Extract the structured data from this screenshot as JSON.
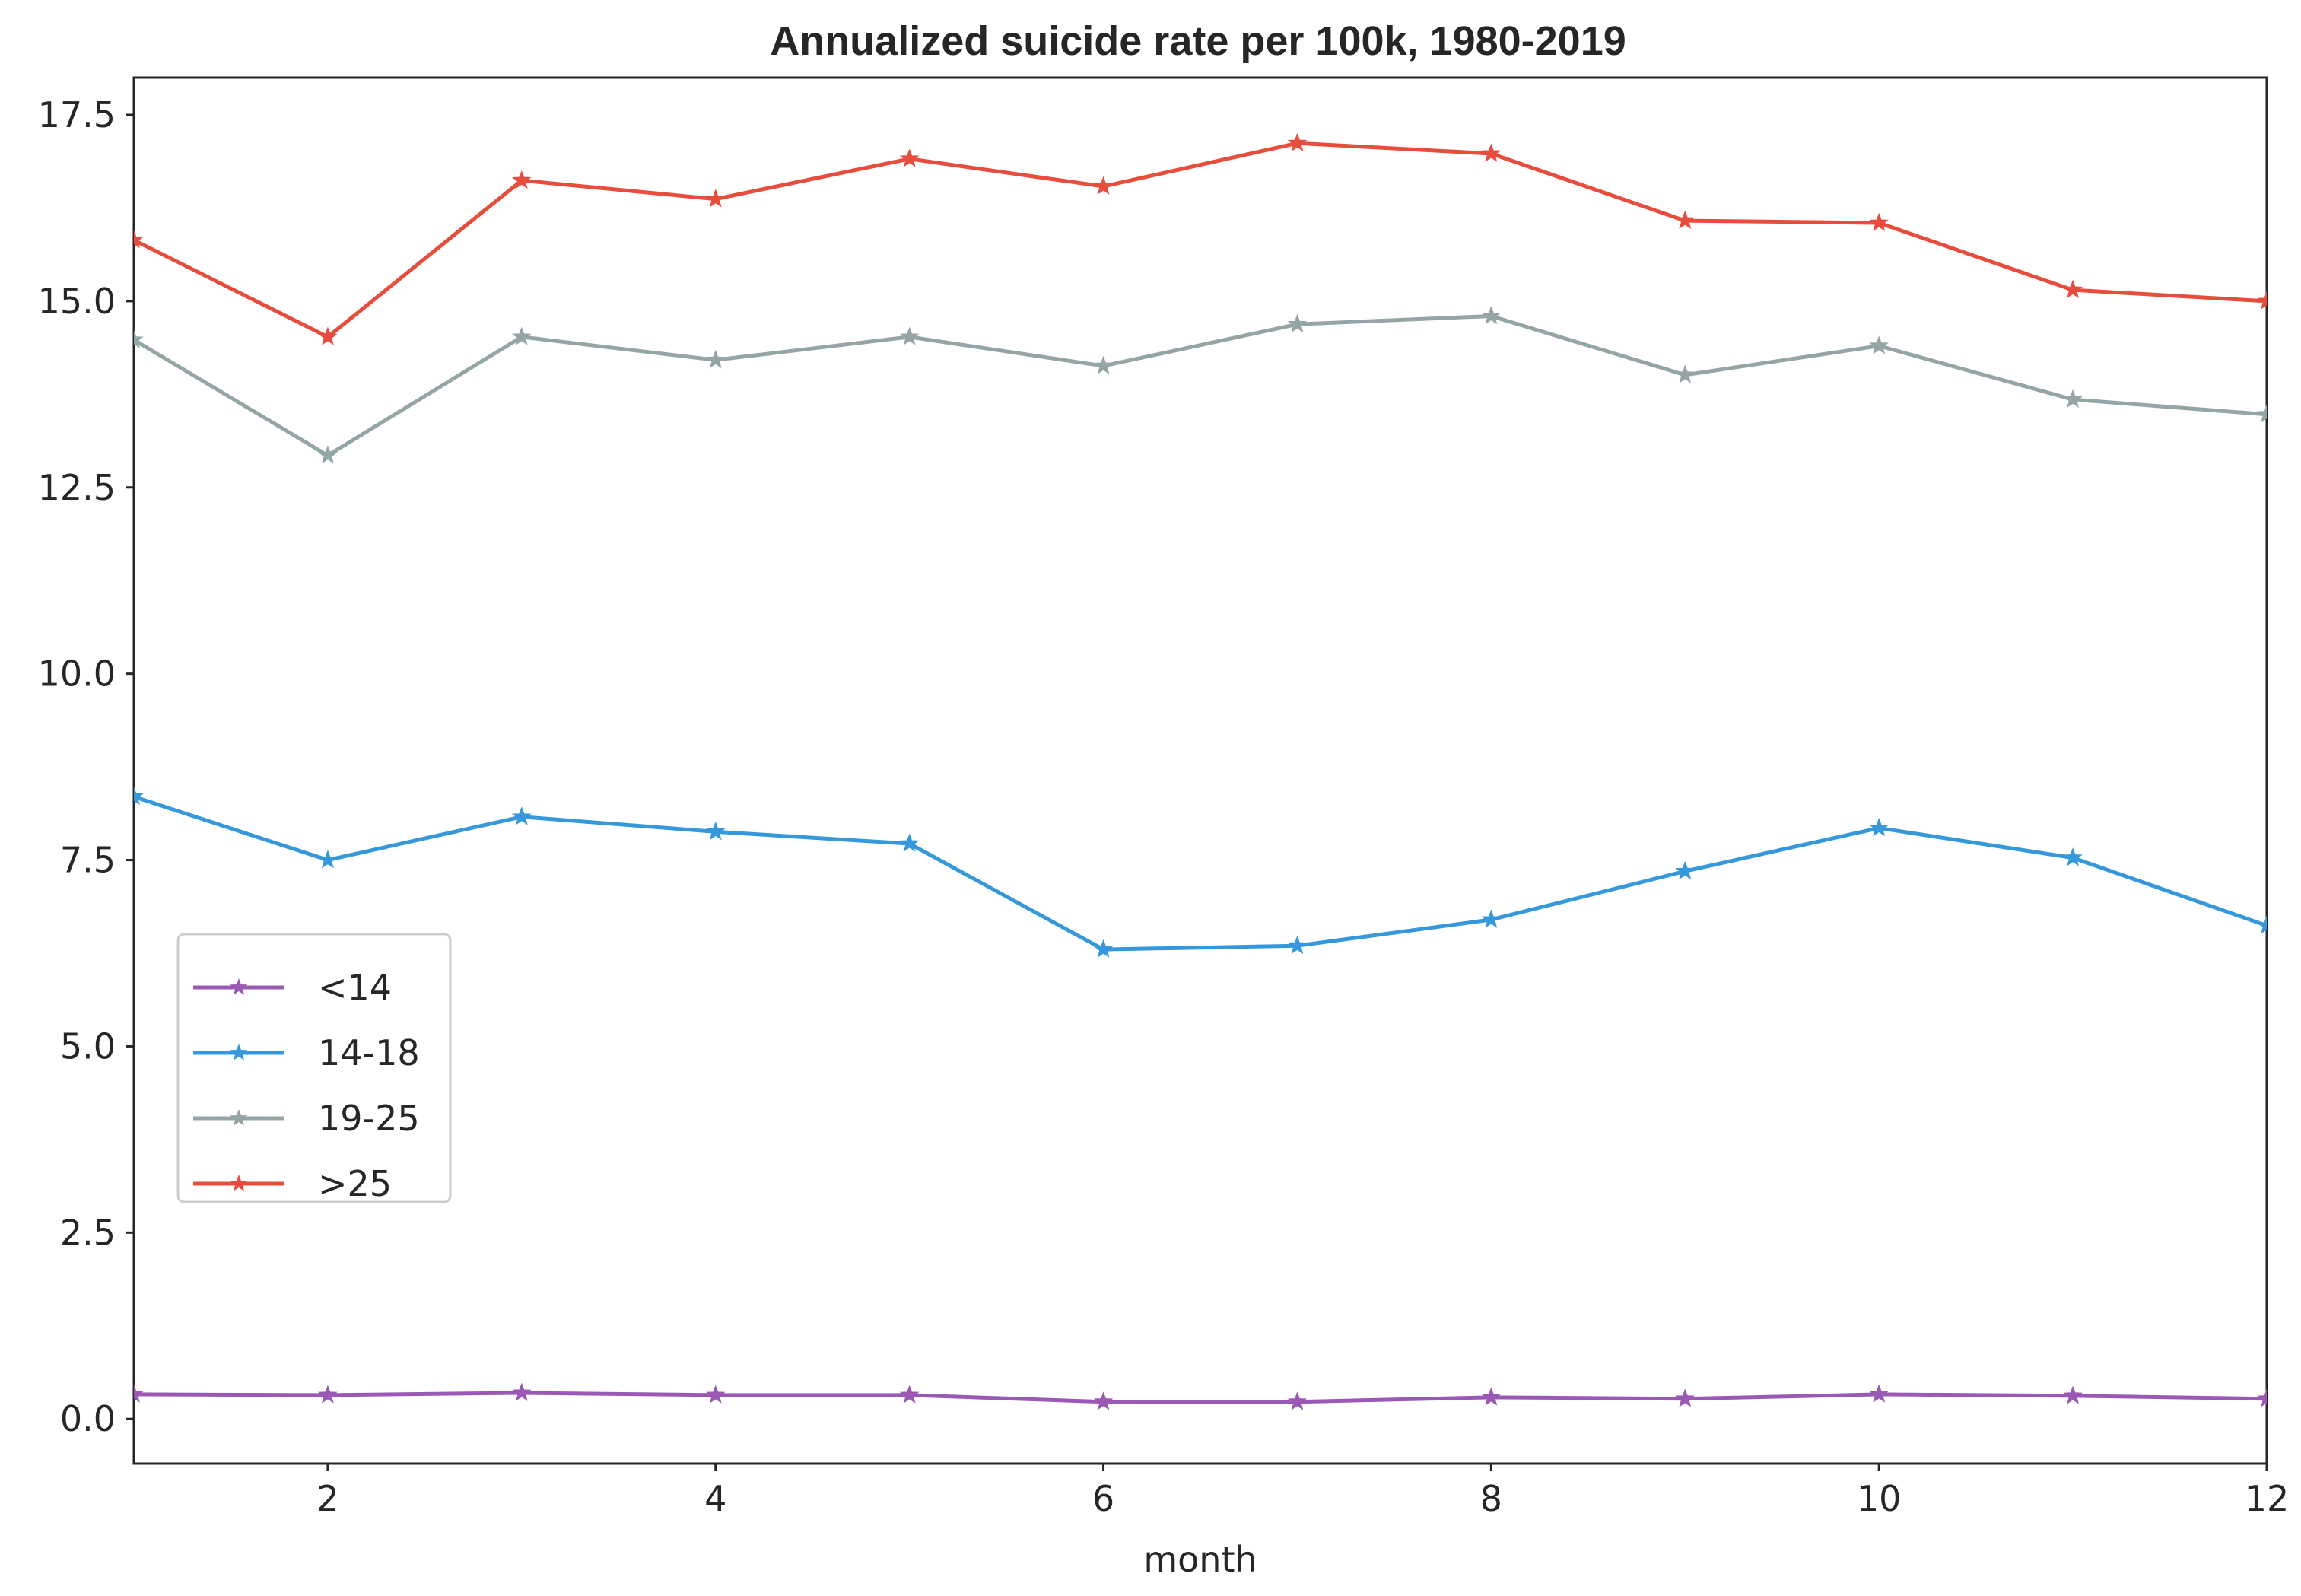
{
  "chart_data": {
    "type": "line",
    "title": "Annualized suicide rate per 100k, 1980-2019",
    "xlabel": "month",
    "ylabel": "",
    "xlim": [
      1,
      12
    ],
    "ylim": [
      -0.6,
      18.0
    ],
    "xticks": [
      2,
      4,
      6,
      8,
      10,
      12
    ],
    "yticks": [
      0.0,
      2.5,
      5.0,
      7.5,
      10.0,
      12.5,
      15.0,
      17.5
    ],
    "grid": false,
    "legend_position": "center-left",
    "marker": "star",
    "x": [
      1,
      2,
      3,
      4,
      5,
      6,
      7,
      8,
      9,
      10,
      11,
      12
    ],
    "series": [
      {
        "name": "<14",
        "color": "#9b59b6",
        "values": [
          0.33,
          0.32,
          0.35,
          0.32,
          0.32,
          0.23,
          0.23,
          0.29,
          0.27,
          0.33,
          0.31,
          0.27
        ]
      },
      {
        "name": "14-18",
        "color": "#3498db",
        "values": [
          8.35,
          7.5,
          8.08,
          7.88,
          7.72,
          6.3,
          6.35,
          6.7,
          7.35,
          7.93,
          7.53,
          6.62
        ]
      },
      {
        "name": "19-25",
        "color": "#95a5a6",
        "values": [
          14.48,
          12.93,
          14.52,
          14.21,
          14.52,
          14.13,
          14.69,
          14.8,
          14.01,
          14.4,
          13.68,
          13.48
        ]
      },
      {
        "name": ">25",
        "color": "#e74c3c",
        "values": [
          15.82,
          14.52,
          16.62,
          16.37,
          16.91,
          16.54,
          17.12,
          16.98,
          16.08,
          16.05,
          15.15,
          15.0
        ]
      }
    ]
  }
}
